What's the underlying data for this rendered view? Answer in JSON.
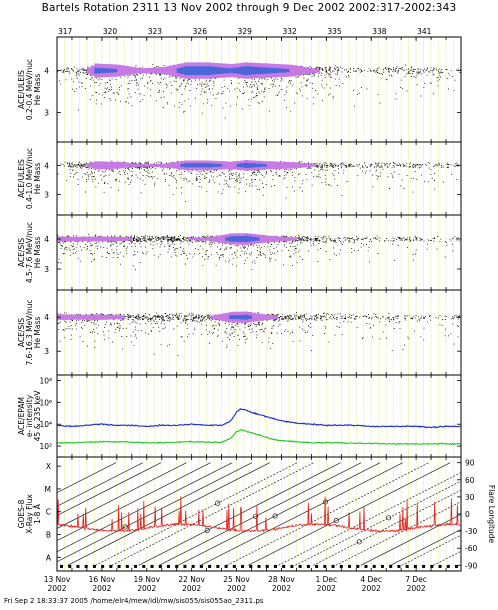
{
  "title": "Bartels Rotation 2311    13 Nov 2002 through 9 Dec 2002    2002:317-2002:343",
  "footer": "Fri Sep  2 18:33:37 2005    /home/elr4/mew/idl/mw/sis055/sis055ao_2311.ps",
  "colors": {
    "frame": "#000000",
    "day_grid": "#f2f2b8",
    "density_core": "#4a66d8",
    "density_mid": "#c77ae6",
    "points": "#111111",
    "epam_high": "#1a2fd0",
    "epam_low": "#22c92a",
    "xray": "#e02020"
  },
  "chart_data": {
    "type": "multi-panel time series",
    "time": {
      "start_doy": 317,
      "end_doy": 344,
      "bartels_ticks": [
        "317",
        "320",
        "323",
        "326",
        "329",
        "332",
        "335",
        "338",
        "341"
      ],
      "bartels_doy": [
        317,
        320,
        323,
        326,
        329,
        332,
        335,
        338,
        341
      ],
      "date_ticks": [
        {
          "doy": 317,
          "day": "13 Nov",
          "year": "2002"
        },
        {
          "doy": 320,
          "day": "16 Nov",
          "year": "2002"
        },
        {
          "doy": 323,
          "day": "19 Nov",
          "year": "2002"
        },
        {
          "doy": 326,
          "day": "22 Nov",
          "year": "2002"
        },
        {
          "doy": 329,
          "day": "25 Nov",
          "year": "2002"
        },
        {
          "doy": 332,
          "day": "28 Nov",
          "year": "2002"
        },
        {
          "doy": 335,
          "day": "1 Dec",
          "year": "2002"
        },
        {
          "doy": 338,
          "day": "4 Dec",
          "year": "2002"
        },
        {
          "doy": 341,
          "day": "7 Dec",
          "year": "2002"
        }
      ]
    },
    "panels": [
      {
        "type": "scatter-density",
        "ylabel": [
          "ACE/ULEIS",
          "0.2-0.4 MeV/nuc",
          "He Mass"
        ],
        "ylim": [
          2.3,
          4.8
        ],
        "yticks": [
          "4",
          "3"
        ],
        "yticks_val": [
          4,
          3
        ],
        "band_center": 4.0,
        "activity": [
          [
            317,
            0.1
          ],
          [
            318.5,
            0.25
          ],
          [
            319.5,
            0.9
          ],
          [
            321,
            0.8
          ],
          [
            322.5,
            0.5
          ],
          [
            324,
            0.6
          ],
          [
            325.5,
            1.0
          ],
          [
            327,
            1.0
          ],
          [
            328.5,
            0.85
          ],
          [
            329.5,
            1.0
          ],
          [
            331,
            0.9
          ],
          [
            332.5,
            0.8
          ],
          [
            334,
            0.5
          ],
          [
            335.5,
            0.3
          ],
          [
            337,
            0.15
          ],
          [
            339,
            0.2
          ],
          [
            341,
            0.2
          ],
          [
            344,
            0.12
          ]
        ]
      },
      {
        "type": "scatter-density",
        "ylabel": [
          "ACE/ULEIS",
          "0.4-1.0 MeV/nuc",
          "He Mass"
        ],
        "ylim": [
          2.3,
          4.8
        ],
        "yticks": [
          "4",
          "3"
        ],
        "yticks_val": [
          4,
          3
        ],
        "band_center": 4.0,
        "activity": [
          [
            317,
            0.1
          ],
          [
            318.5,
            0.3
          ],
          [
            319.5,
            0.8
          ],
          [
            321,
            0.7
          ],
          [
            322.5,
            0.45
          ],
          [
            324,
            0.5
          ],
          [
            325.5,
            0.9
          ],
          [
            327,
            0.9
          ],
          [
            328.5,
            0.75
          ],
          [
            329.5,
            0.95
          ],
          [
            331,
            0.8
          ],
          [
            332.5,
            0.7
          ],
          [
            334,
            0.45
          ],
          [
            335.5,
            0.25
          ],
          [
            337,
            0.12
          ],
          [
            339,
            0.18
          ],
          [
            341,
            0.15
          ],
          [
            344,
            0.1
          ]
        ]
      },
      {
        "type": "scatter-density",
        "ylabel": [
          "ACE/SIS",
          "4.5-7.6 MeV/nuc",
          "He Mass"
        ],
        "ylim": [
          2.3,
          4.8
        ],
        "yticks": [
          "4",
          "3"
        ],
        "yticks_val": [
          4,
          3
        ],
        "band_center": 4.0,
        "activity": [
          [
            317,
            0.6
          ],
          [
            318.5,
            0.55
          ],
          [
            319.5,
            0.6
          ],
          [
            321,
            0.55
          ],
          [
            322.5,
            0.4
          ],
          [
            324,
            0.45
          ],
          [
            325.5,
            0.45
          ],
          [
            327,
            0.5
          ],
          [
            328.5,
            0.95
          ],
          [
            329.5,
            1.0
          ],
          [
            331,
            0.7
          ],
          [
            332.5,
            0.5
          ],
          [
            334,
            0.3
          ],
          [
            335.5,
            0.2
          ],
          [
            337,
            0.15
          ],
          [
            339,
            0.15
          ],
          [
            341,
            0.12
          ],
          [
            344,
            0.1
          ]
        ]
      },
      {
        "type": "scatter-density",
        "ylabel": [
          "ACE/SIS",
          "7.6-16.3 MeV/nuc",
          "He Mass"
        ],
        "ylim": [
          2.3,
          4.8
        ],
        "yticks": [
          "4",
          "3"
        ],
        "yticks_val": [
          4,
          3
        ],
        "band_center": 4.0,
        "activity": [
          [
            317,
            0.6
          ],
          [
            318.5,
            0.55
          ],
          [
            319.5,
            0.6
          ],
          [
            321,
            0.5
          ],
          [
            322.5,
            0.35
          ],
          [
            324,
            0.35
          ],
          [
            325.5,
            0.35
          ],
          [
            327,
            0.4
          ],
          [
            328.5,
            0.85
          ],
          [
            329.5,
            0.9
          ],
          [
            331,
            0.55
          ],
          [
            332.5,
            0.35
          ],
          [
            334,
            0.25
          ],
          [
            335.5,
            0.18
          ],
          [
            337,
            0.15
          ],
          [
            339,
            0.15
          ],
          [
            341,
            0.12
          ],
          [
            344,
            0.1
          ]
        ]
      },
      {
        "type": "line",
        "ylabel": [
          "ACE/EPAM",
          "e- intensity",
          "45 & 235 keV"
        ],
        "log": true,
        "ylim_exp": [
          1,
          8.5
        ],
        "yticks": [
          "10⁸",
          "10⁶",
          "10⁴",
          "10²"
        ],
        "yticks_exp": [
          8,
          6,
          4,
          2
        ],
        "series": [
          {
            "name": "45 keV",
            "color_key": "epam_high",
            "x": [
              317,
              318,
              319,
              320,
              321,
              322,
              323,
              324,
              325,
              326,
              327,
              328,
              328.6,
              329,
              329.3,
              329.6,
              330,
              330.5,
              331,
              331.5,
              332,
              333,
              334,
              335,
              336,
              337,
              338,
              339,
              340,
              341,
              342,
              343,
              344
            ],
            "log10_y": [
              3.9,
              3.8,
              3.9,
              4.0,
              3.9,
              3.9,
              3.8,
              3.9,
              3.9,
              4.0,
              3.9,
              3.9,
              4.3,
              5.1,
              5.4,
              5.3,
              5.1,
              4.9,
              4.7,
              4.5,
              4.3,
              4.1,
              4.0,
              3.9,
              3.9,
              3.9,
              3.8,
              3.8,
              3.8,
              3.8,
              3.7,
              3.8,
              3.8
            ]
          },
          {
            "name": "235 keV",
            "color_key": "epam_low",
            "x": [
              317,
              318,
              319,
              320,
              321,
              322,
              323,
              324,
              325,
              326,
              327,
              328,
              328.6,
              329,
              329.3,
              329.6,
              330,
              330.5,
              331,
              331.5,
              332,
              333,
              334,
              335,
              336,
              337,
              338,
              339,
              340,
              341,
              342,
              343,
              344
            ],
            "log10_y": [
              2.3,
              2.3,
              2.35,
              2.4,
              2.4,
              2.35,
              2.3,
              2.3,
              2.35,
              2.4,
              2.35,
              2.35,
              2.7,
              3.3,
              3.5,
              3.4,
              3.2,
              3.0,
              2.8,
              2.6,
              2.5,
              2.4,
              2.3,
              2.3,
              2.3,
              2.25,
              2.25,
              2.2,
              2.2,
              2.2,
              2.2,
              2.2,
              2.2
            ]
          }
        ]
      },
      {
        "type": "line",
        "ylabel": [
          "GOES-8",
          "X-Ray Flux",
          "1-8 Å"
        ],
        "ylabel_right": "Flare Longitude",
        "yticks": [
          "X",
          "M",
          "C",
          "B",
          "A"
        ],
        "yticks_level": [
          -3,
          -4,
          -5,
          -6,
          -7
        ],
        "ylim_log": [
          -7.6,
          -2.6
        ],
        "yticks_right": [
          "90",
          "60",
          "30",
          "0",
          "-30",
          "-60",
          "-90"
        ],
        "yticks_right_val": [
          90,
          60,
          30,
          0,
          -30,
          -60,
          -90
        ],
        "ylim_right": [
          -100,
          100
        ],
        "flare_lines_count": 24
      }
    ]
  }
}
